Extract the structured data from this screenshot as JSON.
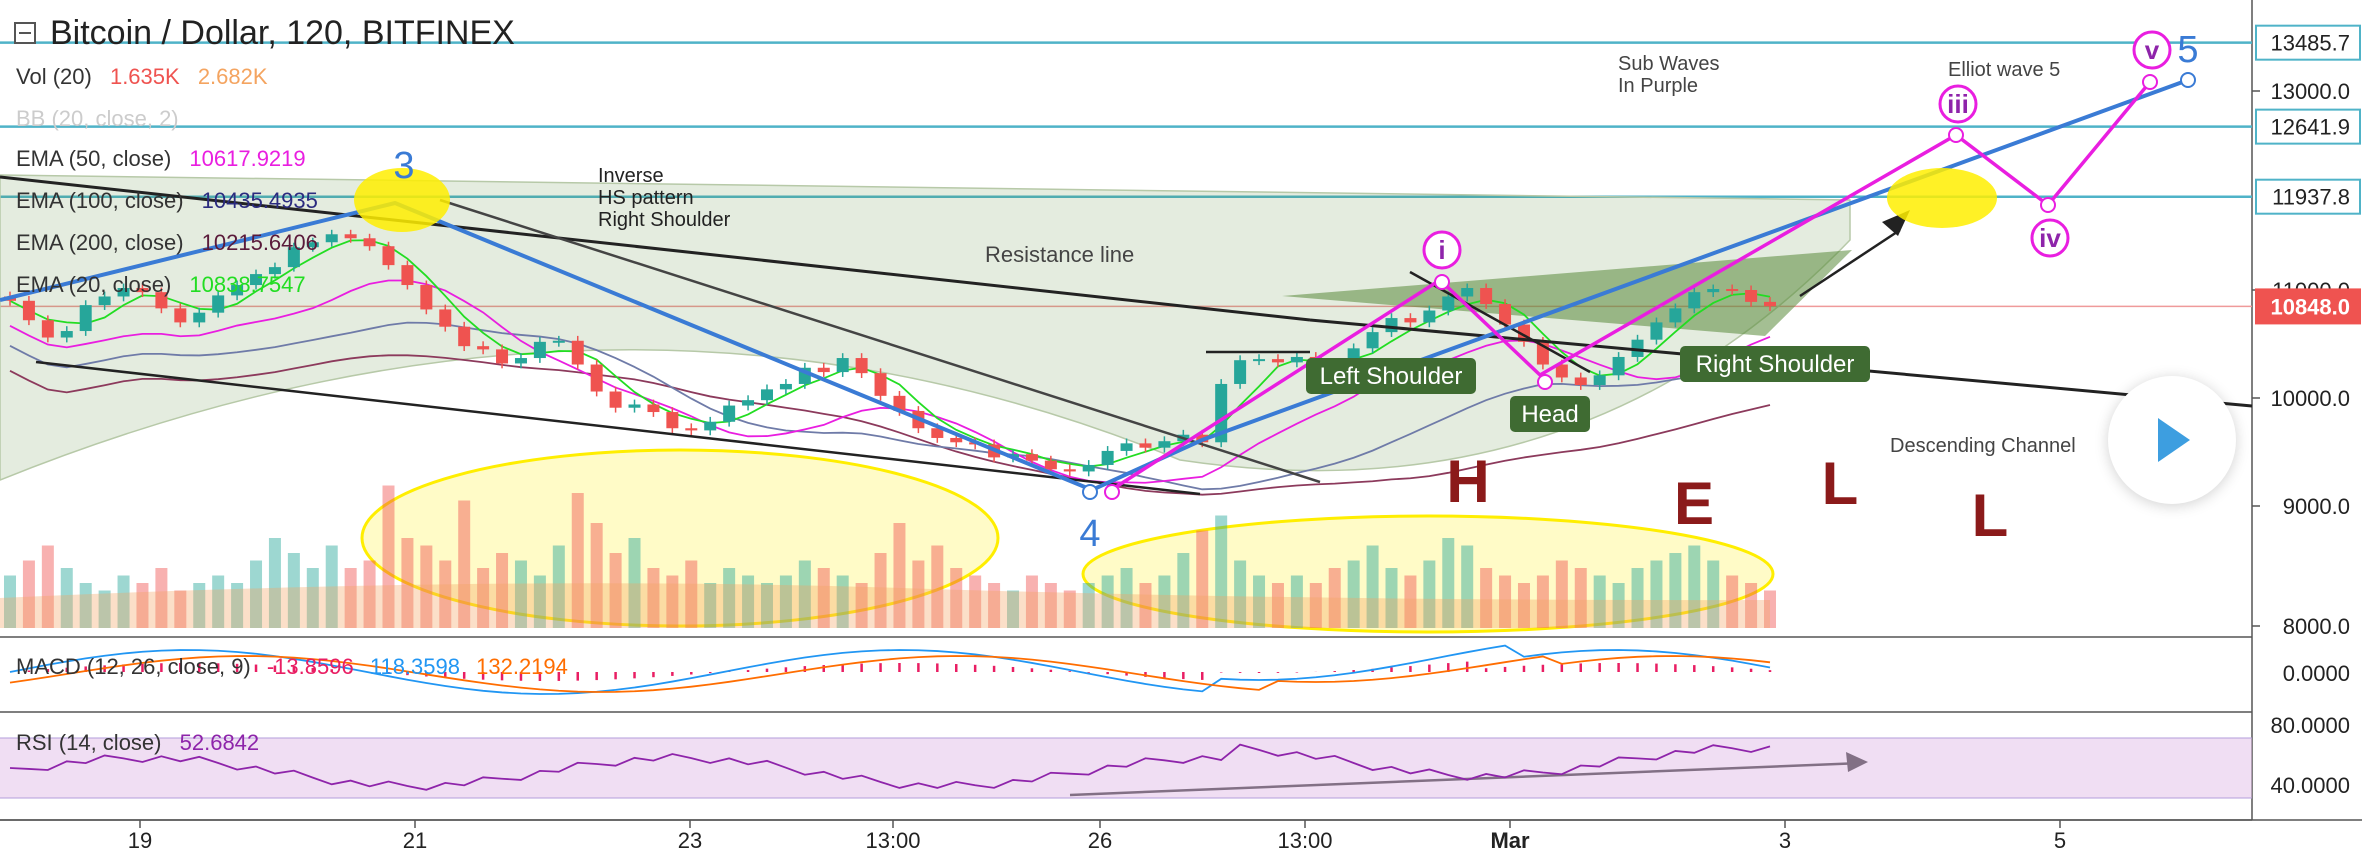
{
  "header": {
    "title": "Bitcoin / Dollar, 120, BITFINEX",
    "vol": {
      "name": "Vol (20)",
      "v1": "1.635K",
      "v2": "2.682K",
      "c1": "#ef5350",
      "c2": "#f4a460"
    },
    "bb": {
      "name": "BB (20, close, 2)"
    },
    "ema50": {
      "name": "EMA (50, close)",
      "value": "10617.9219",
      "color": "#e91ee0"
    },
    "ema100": {
      "name": "EMA (100, close)",
      "value": "10435.4935",
      "color": "#2b2b7f"
    },
    "ema200": {
      "name": "EMA (200, close)",
      "value": "10215.6406",
      "color": "#5a1a3a"
    },
    "ema20": {
      "name": "EMA (20, close)",
      "value": "10838.7547",
      "color": "#22dd22"
    },
    "macd": {
      "name": "MACD (12, 26, close, 9)",
      "hist": "-13.8596",
      "macd": "118.3598",
      "signal": "132.2194",
      "c_hist": "#e91e63",
      "c_macd": "#2196f3",
      "c_signal": "#ff6d00"
    },
    "rsi": {
      "name": "RSI (14, close)",
      "value": "52.6842",
      "color": "#8e24aa"
    }
  },
  "chart_data": {
    "type": "candlestick",
    "price_axis_ticks": [
      "13000.0",
      "11000.0",
      "10000.0",
      "9000.0",
      "8000.0"
    ],
    "price_badges": [
      {
        "label": "13485.7",
        "value": 13485.7,
        "bg": "#ffffff",
        "fg": "#222222"
      },
      {
        "label": "12641.9",
        "value": 12641.9,
        "bg": "#ffffff",
        "fg": "#222222"
      },
      {
        "label": "11937.8",
        "value": 11937.8,
        "bg": "#ffffff",
        "fg": "#222222"
      },
      {
        "label": "10848.0",
        "value": 10848.0,
        "bg": "#ef5350",
        "fg": "#ffffff"
      }
    ],
    "horizontal_levels": [
      13485.7,
      12641.9,
      11937.8
    ],
    "last_price": 10848.0,
    "macd_axis_ticks": [
      "0.0000"
    ],
    "rsi_axis_ticks": [
      "80.0000",
      "40.0000"
    ],
    "rsi_band": [
      30,
      70
    ],
    "time_labels": [
      "19",
      "21",
      "23",
      "13:00",
      "26",
      "13:00",
      "Mar",
      "3",
      "5"
    ],
    "price_series": [
      10900,
      10720,
      10560,
      10620,
      10860,
      10940,
      11020,
      10980,
      10830,
      10700,
      10790,
      10950,
      11050,
      11160,
      11230,
      11430,
      11480,
      11560,
      11520,
      11440,
      11250,
      11050,
      10820,
      10660,
      10480,
      10450,
      10320,
      10370,
      10520,
      10530,
      10310,
      10060,
      9910,
      9940,
      9870,
      9720,
      9700,
      9780,
      9930,
      9980,
      10080,
      10130,
      10280,
      10240,
      10370,
      10230,
      10020,
      9880,
      9720,
      9630,
      9590,
      9570,
      9450,
      9480,
      9420,
      9340,
      9320,
      9380,
      9510,
      9580,
      9540,
      9600,
      9660,
      9590,
      10130,
      10350,
      10360,
      10330,
      10380,
      10300,
      10290,
      10460,
      10610,
      10740,
      10700,
      10810,
      10940,
      11020,
      10870,
      10680,
      10520,
      10310,
      10190,
      10120,
      10210,
      10380,
      10540,
      10700,
      10830,
      10980,
      11010,
      11000,
      10890,
      10850
    ]
  },
  "annotations": {
    "wave3": "3",
    "wave4": "4",
    "wave5": "5",
    "wave_i": "i",
    "wave_iii": "iii",
    "wave_iv": "iv",
    "wave_v": "v",
    "inverse_hs": [
      "Inverse",
      "HS pattern",
      "Right Shoulder"
    ],
    "resistance_line": "Resistance line",
    "sub_waves": [
      "Sub Waves",
      "In Purple"
    ],
    "elliot": "Elliot wave 5",
    "left_shoulder": "Left Shoulder",
    "right_shoulder": "Right Shoulder",
    "head": "Head",
    "descending_channel": "Descending Channel",
    "hell": [
      "H",
      "E",
      "L",
      "L"
    ]
  },
  "colors": {
    "up": "#26a69a",
    "down": "#ef5350",
    "wave_blue": "#3a7bd5",
    "wave_purple": "#e91ee0",
    "highlight": "#ffee00",
    "pattern_fill": "#5a8a3a",
    "hell": "#8b1a1a",
    "label_bg": "#3f6b32"
  }
}
